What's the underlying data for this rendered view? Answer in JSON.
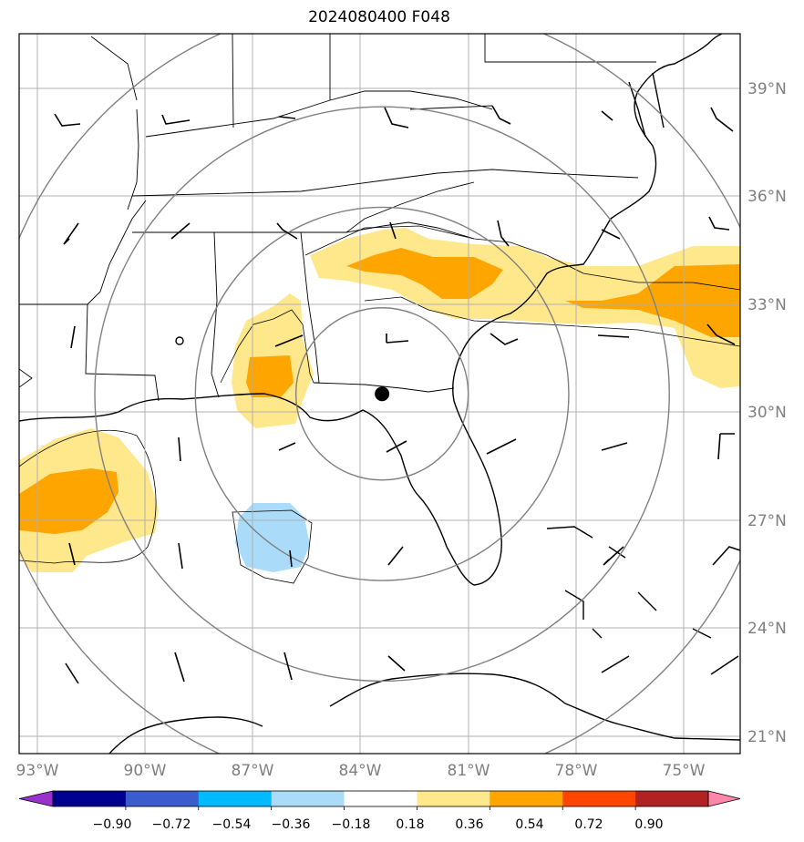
{
  "title": "2024080400 F048",
  "map": {
    "projection": "plate-carree",
    "lon_range": [
      -93.0,
      -73.5
    ],
    "lat_range": [
      20.5,
      40.0
    ],
    "center_marker": {
      "lon": -83.4,
      "lat": 30.5
    },
    "grid": true,
    "lon_ticks": [
      {
        "value": -93,
        "label": "93°W"
      },
      {
        "value": -90,
        "label": "90°W"
      },
      {
        "value": -87,
        "label": "87°W"
      },
      {
        "value": -84,
        "label": "84°W"
      },
      {
        "value": -81,
        "label": "81°W"
      },
      {
        "value": -78,
        "label": "78°W"
      },
      {
        "value": -75,
        "label": "75°W"
      }
    ],
    "lat_ticks": [
      {
        "value": 39,
        "label": "39°N"
      },
      {
        "value": 36,
        "label": "36°N"
      },
      {
        "value": 33,
        "label": "33°N"
      },
      {
        "value": 30,
        "label": "30°N"
      },
      {
        "value": 27,
        "label": "27°N"
      },
      {
        "value": 24,
        "label": "24°N"
      },
      {
        "value": 21,
        "label": "21°N"
      }
    ],
    "range_rings_deg": [
      2.4,
      5.2,
      8.0,
      11.0
    ],
    "ring_color": "#808080",
    "shaded_areas": [
      {
        "band": "0.18 to 0.36",
        "color": "#ffe88c"
      },
      {
        "band": "0.36 to 0.54",
        "color": "#ffa500"
      },
      {
        "band": "-0.36 to -0.18",
        "color": "#aadcfa"
      }
    ]
  },
  "colorbar": {
    "extend": "both",
    "low_extension_color": "#9932cc",
    "high_extension_color": "#ff88aa",
    "bins": [
      {
        "color": "#9932cc"
      },
      {
        "color": "#000090"
      },
      {
        "color": "#3a5ccc"
      },
      {
        "color": "#00baff"
      },
      {
        "color": "#aadcfa"
      },
      {
        "color": "#ffffff"
      },
      {
        "color": "#ffe88c"
      },
      {
        "color": "#ffa500"
      },
      {
        "color": "#ff4500"
      },
      {
        "color": "#b22222"
      },
      {
        "color": "#ff88aa"
      }
    ],
    "tick_labels": [
      "−0.90",
      "−0.72",
      "−0.54",
      "−0.36",
      "−0.18",
      "0.18",
      "0.36",
      "0.54",
      "0.72",
      "0.90"
    ]
  }
}
